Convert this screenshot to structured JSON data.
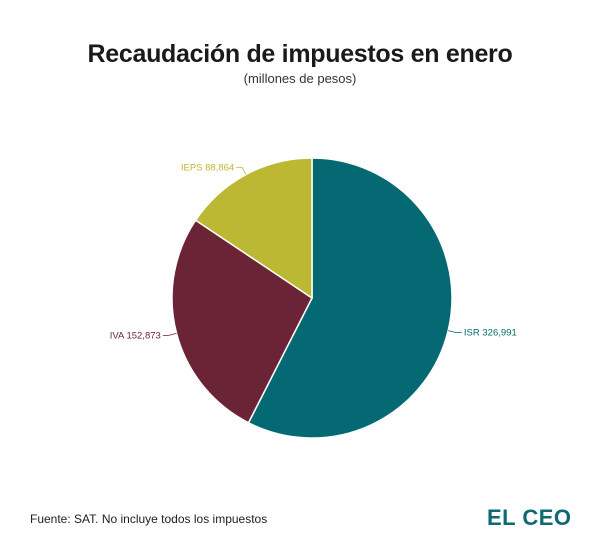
{
  "title": "Recaudación de impuestos en enero",
  "subtitle": "(millones de pesos)",
  "chart_data": {
    "type": "pie",
    "title": "Recaudación de impuestos en enero",
    "subtitle": "(millones de pesos)",
    "categories": [
      "ISR",
      "IVA",
      "IEPS"
    ],
    "values": [
      326991,
      152873,
      88864
    ],
    "labels": [
      "ISR 326,991",
      "IVA 152,873",
      "IEPS 88,864"
    ],
    "colors": [
      "#046972",
      "#6b2336",
      "#bdb834"
    ],
    "start": "top",
    "direction": "clockwise"
  },
  "footer": {
    "source": "Fuente: SAT. No incluye todos los impuestos",
    "logo": "EL CEO"
  }
}
